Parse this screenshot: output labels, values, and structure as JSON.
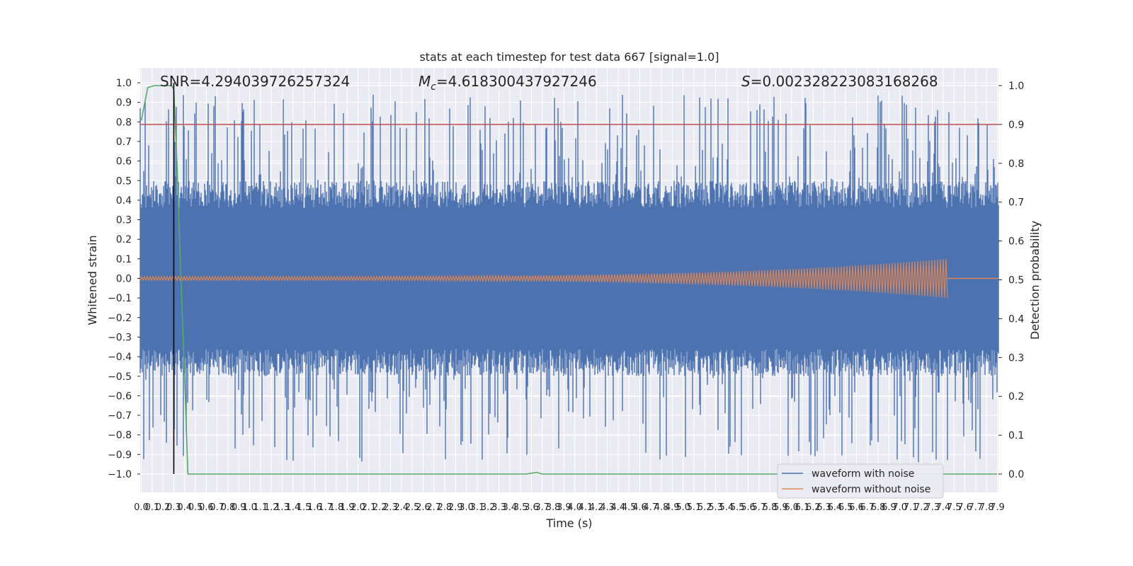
{
  "chart_data": {
    "type": "line",
    "title": "stats at each timestep for test data 667 [signal=1.0]",
    "xlabel": "Time (s)",
    "ylabel": "Whitened strain",
    "y2label": "Detection probability",
    "xlim": [
      0.0,
      7.9
    ],
    "ylim": [
      -1.1,
      1.1
    ],
    "y2lim": [
      -0.05,
      1.05
    ],
    "x_tick_step": 0.1,
    "x_ticks_count": 80,
    "y_ticks": [
      -1.0,
      -0.9,
      -0.8,
      -0.7,
      -0.6,
      -0.5,
      -0.4,
      -0.3,
      -0.2,
      -0.1,
      0.0,
      0.1,
      0.2,
      0.3,
      0.4,
      0.5,
      0.6,
      0.7,
      0.8,
      0.9,
      1.0
    ],
    "y2_ticks": [
      0.0,
      0.1,
      0.2,
      0.3,
      0.4,
      0.5,
      0.6,
      0.7,
      0.8,
      0.9,
      1.0
    ],
    "grid": true,
    "legend_position": "lower-right",
    "annotations": {
      "snr": "SNR=4.294039726257324",
      "mc_symbol": "M",
      "mc_sub": "c",
      "mc_value": "=4.618300437927246",
      "s_symbol": "S",
      "s_value": "=0.002328223083168268"
    },
    "threshold_probability": 0.9,
    "event_marker_time": 0.3,
    "chirp_end_time": 7.44,
    "series": [
      {
        "name": "waveform with noise",
        "color": "#4c72b0",
        "envelope": {
          "typical_abs": 0.4,
          "peak_abs": 1.0
        }
      },
      {
        "name": "waveform without noise",
        "color": "#dd8452",
        "envelope": {
          "start_abs": 0.01,
          "end_abs": 0.1,
          "end_time": 7.44
        }
      },
      {
        "name": "detection probability",
        "color": "#55a868",
        "axis": "right",
        "x": [
          0.0,
          0.06,
          0.12,
          0.2,
          0.28,
          0.3,
          0.33,
          0.36,
          0.4,
          0.43,
          0.5,
          3.55,
          3.6,
          3.65,
          3.7,
          3.8,
          7.9
        ],
        "y": [
          0.91,
          0.995,
          1.0,
          1.0,
          1.0,
          0.99,
          0.8,
          0.55,
          0.25,
          0.0,
          0.0,
          0.0,
          0.002,
          0.004,
          0.0,
          0.0,
          0.0
        ]
      }
    ],
    "colors": {
      "plot_bg": "#eaeaf2",
      "grid": "#ffffff",
      "threshold": "#c44e52",
      "marker": "#000000"
    }
  }
}
